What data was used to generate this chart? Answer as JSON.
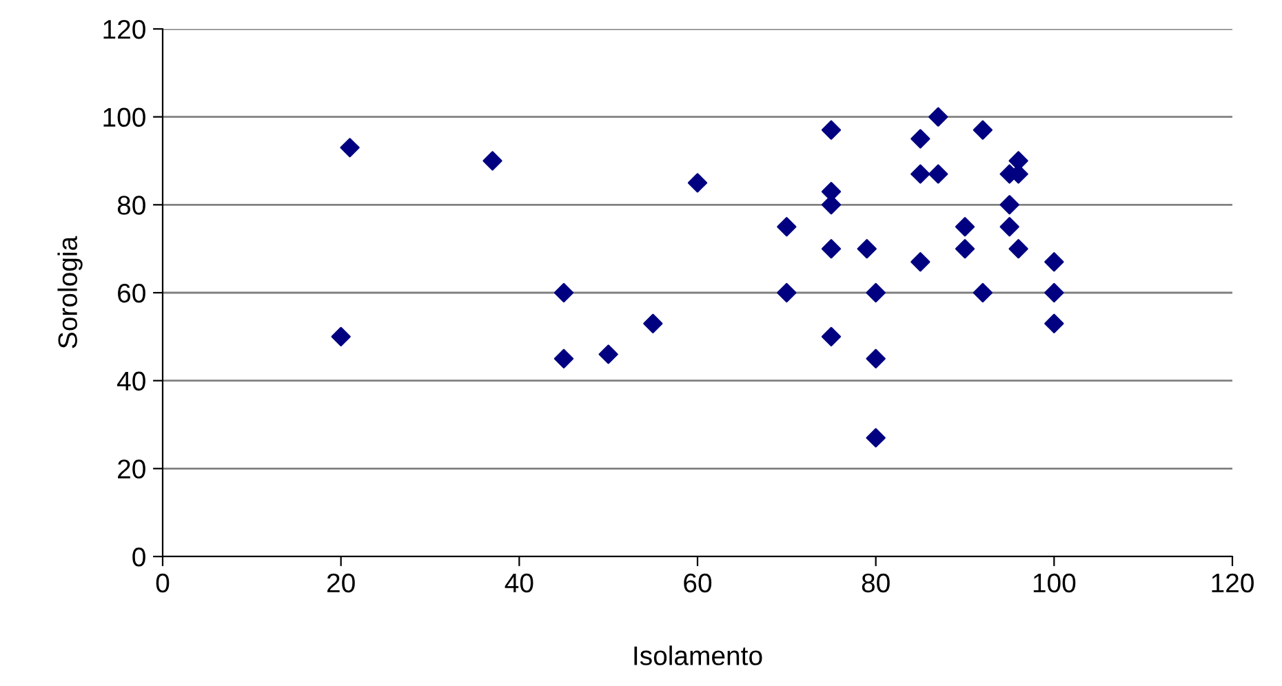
{
  "chart_data": {
    "type": "scatter",
    "xlabel": "Isolamento",
    "ylabel": "Sorologia",
    "x": [
      20,
      21,
      37,
      45,
      45,
      50,
      55,
      60,
      70,
      70,
      75,
      75,
      75,
      75,
      75,
      79,
      80,
      80,
      80,
      85,
      85,
      85,
      87,
      87,
      90,
      90,
      92,
      92,
      95,
      95,
      95,
      96,
      96,
      96,
      100,
      100,
      100
    ],
    "series": [
      {
        "color": "#000080",
        "values": [
          50,
          93,
          90,
          60,
          45,
          46,
          53,
          85,
          75,
          60,
          97,
          83,
          80,
          70,
          50,
          70,
          60,
          45,
          27,
          95,
          87,
          67,
          100,
          87,
          75,
          70,
          97,
          60,
          87,
          80,
          75,
          90,
          87,
          70,
          67,
          60,
          53
        ]
      }
    ],
    "xlim": [
      0,
      120
    ],
    "xticks": [
      0,
      20,
      40,
      60,
      80,
      100,
      120
    ],
    "ylim": [
      0,
      120
    ],
    "yticks": [
      0,
      20,
      40,
      60,
      80,
      100,
      120
    ],
    "grid": "y",
    "marker": "diamond",
    "legend": false
  }
}
